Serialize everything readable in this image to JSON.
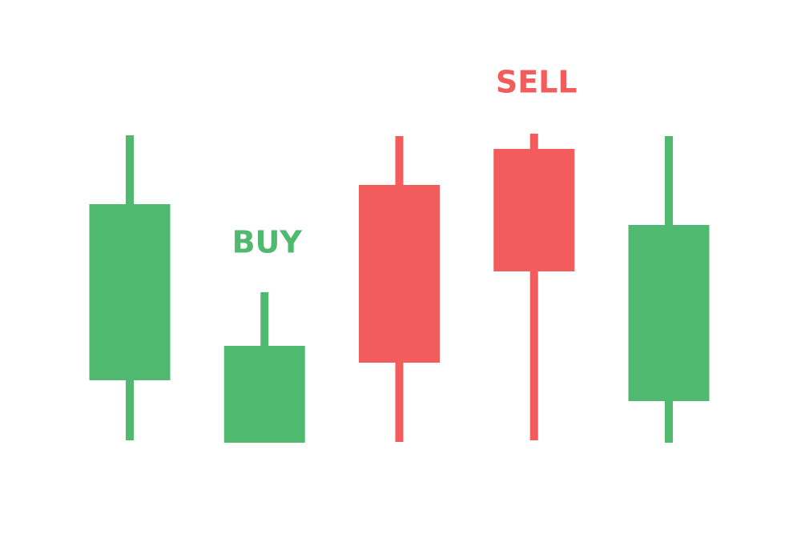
{
  "chart_data": {
    "type": "candlestick",
    "colors": {
      "bullish": "#4fba6f",
      "bearish": "#f25c5c"
    },
    "candles": [
      {
        "direction": "bullish",
        "high": 518,
        "open": 212,
        "close": 432,
        "low": 137
      },
      {
        "direction": "bullish",
        "high": 322,
        "open": 134,
        "close": 255,
        "low": 134
      },
      {
        "direction": "bearish",
        "high": 517,
        "open": 456,
        "close": 234,
        "low": 135
      },
      {
        "direction": "bearish",
        "high": 520,
        "open": 501,
        "close": 348,
        "low": 137
      },
      {
        "direction": "bullish",
        "high": 517,
        "open": 186,
        "close": 406,
        "low": 134
      }
    ],
    "annotations": [
      {
        "text": "BUY",
        "candle_index": 1,
        "color": "#4fba6f"
      },
      {
        "text": "SELL",
        "candle_index": 3,
        "color": "#f25c5c"
      }
    ]
  }
}
